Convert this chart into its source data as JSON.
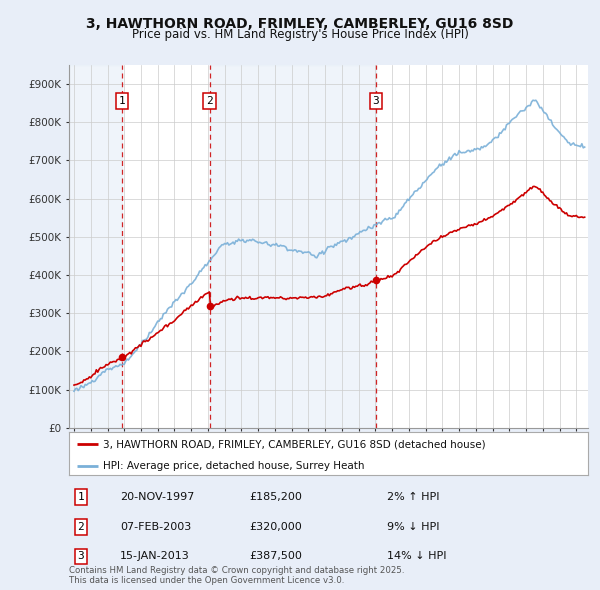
{
  "title": "3, HAWTHORN ROAD, FRIMLEY, CAMBERLEY, GU16 8SD",
  "subtitle": "Price paid vs. HM Land Registry's House Price Index (HPI)",
  "legend_label_red": "3, HAWTHORN ROAD, FRIMLEY, CAMBERLEY, GU16 8SD (detached house)",
  "legend_label_blue": "HPI: Average price, detached house, Surrey Heath",
  "footer": "Contains HM Land Registry data © Crown copyright and database right 2025.\nThis data is licensed under the Open Government Licence v3.0.",
  "sale_markers": [
    {
      "num": 1,
      "date": "20-NOV-1997",
      "price": 185200,
      "pct": "2%",
      "dir": "↑",
      "x_year": 1997.87
    },
    {
      "num": 2,
      "date": "07-FEB-2003",
      "price": 320000,
      "pct": "9%",
      "dir": "↓",
      "x_year": 2003.1
    },
    {
      "num": 3,
      "date": "15-JAN-2013",
      "price": 387500,
      "pct": "14%",
      "dir": "↓",
      "x_year": 2013.04
    }
  ],
  "ylim": [
    0,
    950000
  ],
  "yticks": [
    0,
    100000,
    200000,
    300000,
    400000,
    500000,
    600000,
    700000,
    800000,
    900000
  ],
  "ytick_labels": [
    "£0",
    "£100K",
    "£200K",
    "£300K",
    "£400K",
    "£500K",
    "£600K",
    "£700K",
    "£800K",
    "£900K"
  ],
  "xlim_start": 1994.7,
  "xlim_end": 2025.7,
  "background_color": "#e8eef8",
  "plot_bg_color": "#ffffff",
  "red_line_color": "#cc0000",
  "blue_line_color": "#7ab0d8",
  "vline_color": "#cc0000",
  "shade_color": "#dce8f5",
  "figsize": [
    6.0,
    5.9
  ],
  "dpi": 100
}
